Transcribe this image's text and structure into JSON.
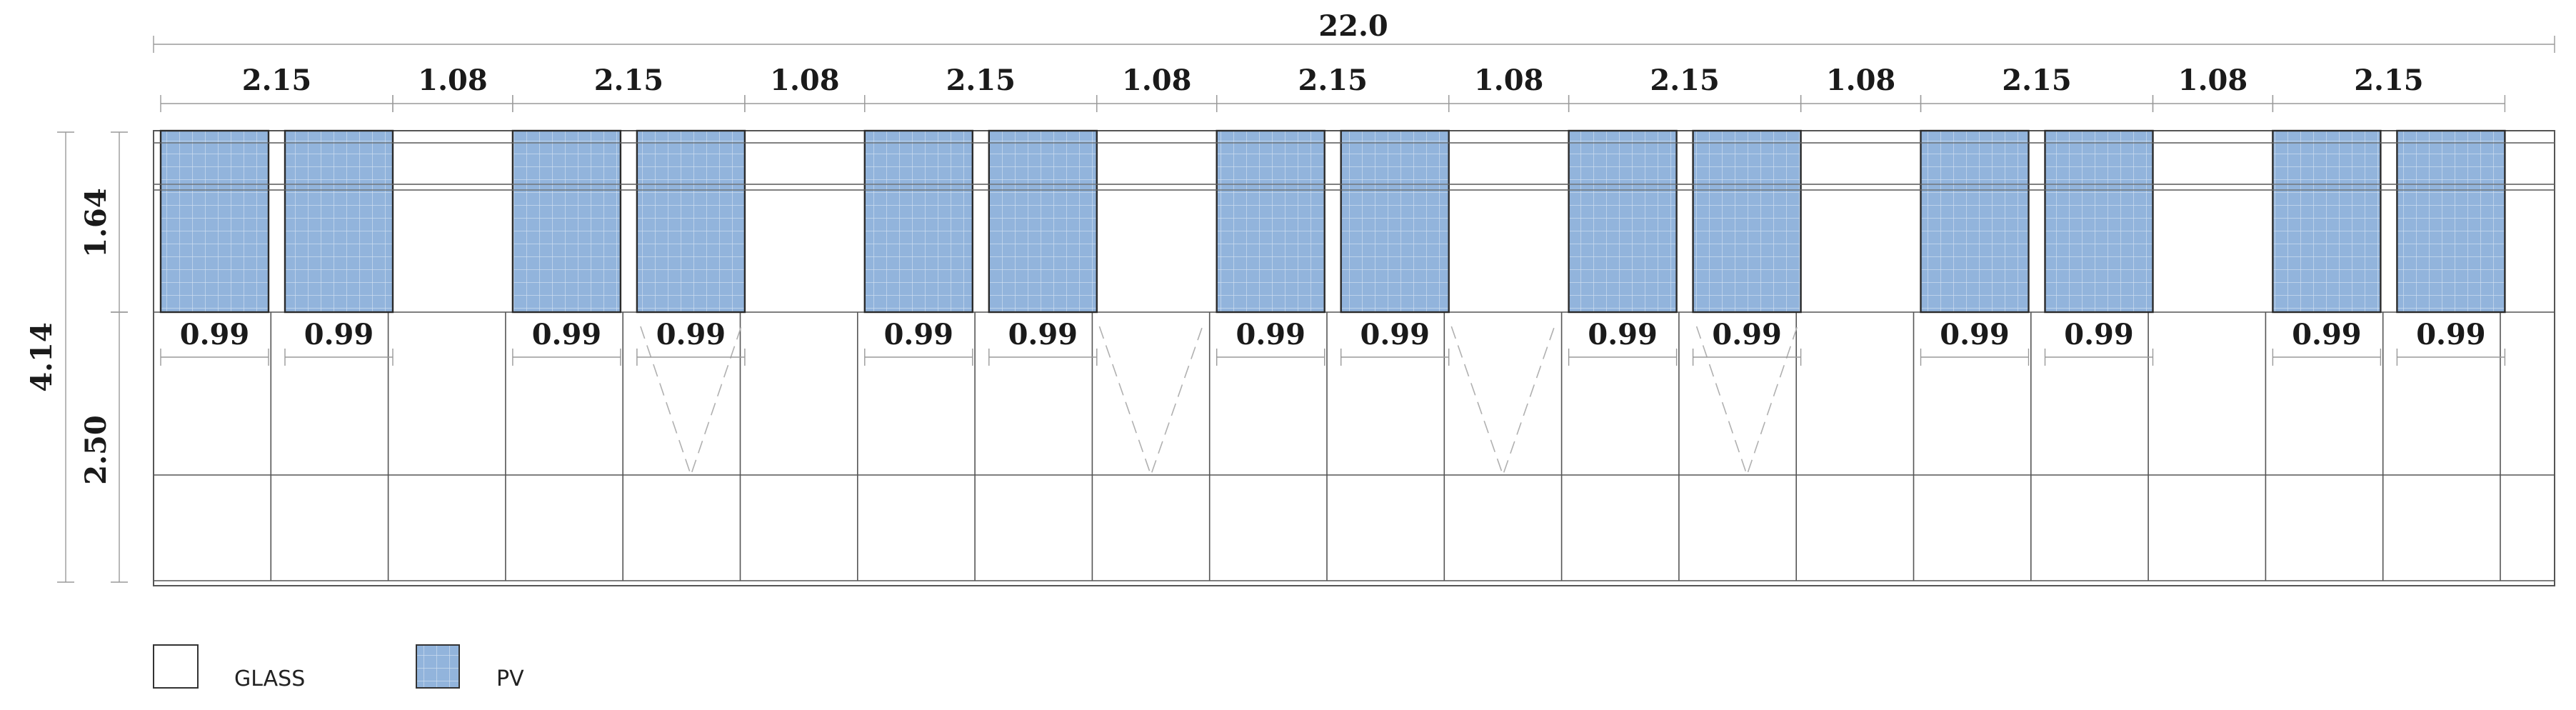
{
  "overall_width_label": "22.0",
  "overall_height_label": "4.14",
  "upper_height_label": "1.64",
  "lower_height_label": "2.50",
  "segments": [
    {
      "type": "pv_group",
      "label": "2.15",
      "panel_labels": [
        "0.99",
        "0.99"
      ]
    },
    {
      "type": "gap",
      "label": "1.08"
    },
    {
      "type": "pv_group",
      "label": "2.15",
      "panel_labels": [
        "0.99",
        "0.99"
      ]
    },
    {
      "type": "gap",
      "label": "1.08"
    },
    {
      "type": "pv_group",
      "label": "2.15",
      "panel_labels": [
        "0.99",
        "0.99"
      ]
    },
    {
      "type": "gap",
      "label": "1.08"
    },
    {
      "type": "pv_group",
      "label": "2.15",
      "panel_labels": [
        "0.99",
        "0.99"
      ]
    },
    {
      "type": "gap",
      "label": "1.08"
    },
    {
      "type": "pv_group",
      "label": "2.15",
      "panel_labels": [
        "0.99",
        "0.99"
      ]
    },
    {
      "type": "gap",
      "label": "1.08"
    },
    {
      "type": "pv_group",
      "label": "2.15",
      "panel_labels": [
        "0.99",
        "0.99"
      ]
    },
    {
      "type": "gap",
      "label": "1.08"
    },
    {
      "type": "pv_group",
      "label": "2.15",
      "panel_labels": [
        "0.99",
        "0.99"
      ]
    }
  ],
  "opening_windows_under_panel": [
    3,
    9
  ],
  "opening_windows_under_gap": [
    2,
    3
  ],
  "legend": [
    {
      "key": "glass",
      "label": "GLASS",
      "color": "#ffffff"
    },
    {
      "key": "pv",
      "label": "PV",
      "color": "#92b4dc"
    }
  ],
  "colors": {
    "pv_fill": "#92b4dc",
    "pv_grid": "#d6e3f2",
    "line": "#555555",
    "dim_line": "#9a9a9a"
  }
}
